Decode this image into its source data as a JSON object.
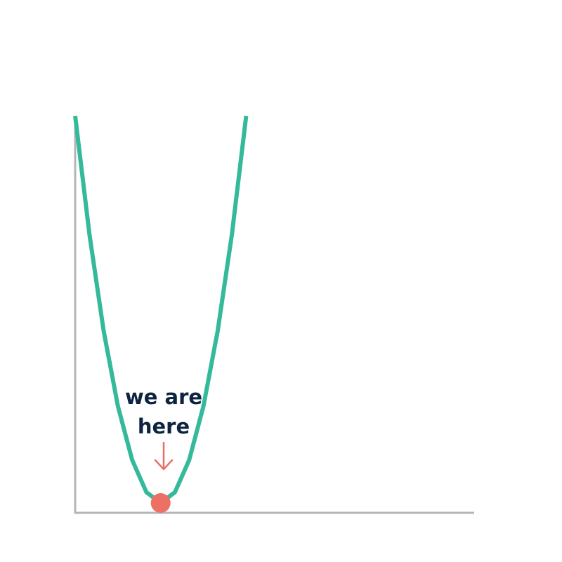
{
  "chart_data": {
    "type": "line",
    "title": "",
    "xlabel": "",
    "ylabel": "",
    "xlim": [
      -1.5,
      5.5
    ],
    "ylim": [
      0,
      1
    ],
    "grid": false,
    "series": [
      {
        "color": "#35b99b",
        "x": [
          -1.5,
          -1.25,
          -1.0,
          -0.75,
          -0.5,
          -0.25,
          0.0,
          0.25,
          0.5,
          0.75,
          1.0,
          1.25,
          1.5
        ],
        "y": [
          1.0,
          0.6944,
          0.4444,
          0.25,
          0.1111,
          0.0278,
          0.0,
          0.0278,
          0.1111,
          0.25,
          0.4444,
          0.6944,
          1.0
        ]
      }
    ],
    "marker": {
      "x": 0.0,
      "y": 0.0,
      "color": "#ec7063"
    },
    "annotation": {
      "lines": [
        "we are",
        "here"
      ],
      "arrow": "↓",
      "color": "#0d2340",
      "arrow_color": "#ec7063"
    },
    "axis_color": "#b5b5b5"
  }
}
